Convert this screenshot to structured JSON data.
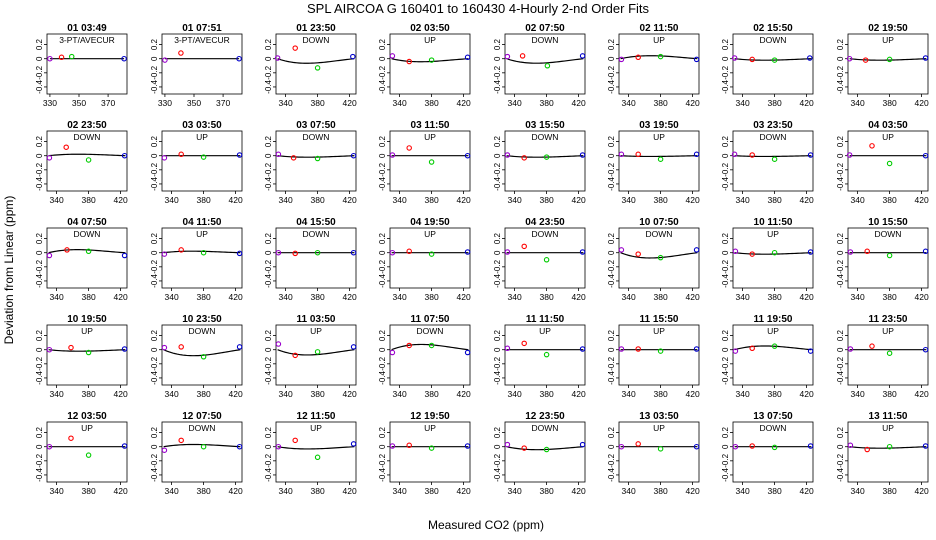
{
  "chart_data": {
    "type": "scatter",
    "title": "SPL   AIRCOA G   160401 to 160430   4-Hourly 2-nd Order Fits",
    "xlabel": "Measured CO2 (ppm)",
    "ylabel": "Deviation from Linear (ppm)",
    "ylim": [
      -0.5,
      0.35
    ],
    "yticks": [
      -0.4,
      -0.2,
      0,
      0.2
    ],
    "ytick_labels": [
      "-0.4",
      "-0.2",
      "0",
      "0.2"
    ],
    "xticks_default": [
      340,
      380,
      420
    ],
    "colors": {
      "a": "#9900cc",
      "b": "#ff0000",
      "c": "#00cc00",
      "d": "#0000cc",
      "fit": "#000000"
    },
    "panels": [
      {
        "time": "01 03:49",
        "label": "3-PT/AVECUR",
        "xlim": [
          328,
          383
        ],
        "xticks": [
          330,
          350,
          370
        ],
        "pts": [
          [
            330,
            0
          ],
          [
            338,
            0.02
          ],
          [
            345,
            0.03
          ],
          [
            381,
            0
          ]
        ],
        "fit": [
          0,
          0
        ]
      },
      {
        "time": "01 07:51",
        "label": "3-PT/AVECUR",
        "xlim": [
          328,
          383
        ],
        "xticks": [
          330,
          350,
          370
        ],
        "pts": [
          [
            330,
            -0.02
          ],
          [
            341,
            0.08
          ],
          [
            381,
            0
          ]
        ],
        "fit": [
          0,
          0
        ]
      },
      {
        "time": "01 23:50",
        "label": "DOWN",
        "xlim": [
          328,
          428
        ],
        "pts": [
          [
            330,
            0.01
          ],
          [
            352,
            0.15
          ],
          [
            380,
            -0.13
          ],
          [
            424,
            0.03
          ]
        ],
        "fit": [
          -0.06,
          3.5
        ]
      },
      {
        "time": "02 03:50",
        "label": "UP",
        "xlim": [
          328,
          428
        ],
        "pts": [
          [
            331,
            0.04
          ],
          [
            352,
            -0.04
          ],
          [
            380,
            -0.02
          ],
          [
            425,
            0.02
          ]
        ],
        "fit": [
          -0.04,
          2.4
        ]
      },
      {
        "time": "02 07:50",
        "label": "DOWN",
        "xlim": [
          328,
          428
        ],
        "pts": [
          [
            331,
            0.03
          ],
          [
            350,
            0.04
          ],
          [
            381,
            -0.1
          ],
          [
            425,
            0.04
          ]
        ],
        "fit": [
          -0.06,
          3.2
        ]
      },
      {
        "time": "02 11:50",
        "label": "UP",
        "xlim": [
          328,
          428
        ],
        "pts": [
          [
            331,
            -0.01
          ],
          [
            352,
            0.02
          ],
          [
            380,
            0.03
          ],
          [
            425,
            -0.01
          ]
        ],
        "fit": [
          0.04,
          -2
        ]
      },
      {
        "time": "02 15:50",
        "label": "DOWN",
        "xlim": [
          328,
          428
        ],
        "pts": [
          [
            330,
            0.01
          ],
          [
            352,
            -0.01
          ],
          [
            380,
            -0.02
          ],
          [
            424,
            0.01
          ]
        ],
        "fit": [
          -0.02,
          1
        ]
      },
      {
        "time": "02 19:50",
        "label": "UP",
        "xlim": [
          328,
          428
        ],
        "pts": [
          [
            330,
            0
          ],
          [
            350,
            -0.02
          ],
          [
            380,
            -0.01
          ],
          [
            425,
            0.01
          ]
        ],
        "fit": [
          -0.02,
          1
        ]
      },
      {
        "time": "02 23:50",
        "label": "DOWN",
        "xlim": [
          328,
          428
        ],
        "pts": [
          [
            331,
            -0.03
          ],
          [
            352,
            0.12
          ],
          [
            380,
            -0.06
          ],
          [
            425,
            0
          ]
        ],
        "fit": [
          0.02,
          -1
        ]
      },
      {
        "time": "03 03:50",
        "label": "UP",
        "xlim": [
          328,
          428
        ],
        "pts": [
          [
            331,
            -0.03
          ],
          [
            352,
            0.02
          ],
          [
            380,
            -0.02
          ],
          [
            425,
            0.01
          ]
        ],
        "fit": [
          0,
          0
        ]
      },
      {
        "time": "03 07:50",
        "label": "DOWN",
        "xlim": [
          328,
          428
        ],
        "pts": [
          [
            331,
            0.02
          ],
          [
            350,
            -0.03
          ],
          [
            380,
            -0.04
          ],
          [
            425,
            0
          ]
        ],
        "fit": [
          -0.02,
          1
        ]
      },
      {
        "time": "03 11:50",
        "label": "UP",
        "xlim": [
          328,
          428
        ],
        "pts": [
          [
            331,
            0.01
          ],
          [
            352,
            0.11
          ],
          [
            380,
            -0.09
          ],
          [
            425,
            0
          ]
        ],
        "fit": [
          0,
          0
        ]
      },
      {
        "time": "03 15:50",
        "label": "DOWN",
        "xlim": [
          328,
          428
        ],
        "pts": [
          [
            331,
            0.01
          ],
          [
            352,
            -0.03
          ],
          [
            380,
            -0.02
          ],
          [
            425,
            0.01
          ]
        ],
        "fit": [
          -0.02,
          1
        ]
      },
      {
        "time": "03 19:50",
        "label": "UP",
        "xlim": [
          328,
          428
        ],
        "pts": [
          [
            331,
            0.02
          ],
          [
            352,
            0.02
          ],
          [
            380,
            -0.05
          ],
          [
            425,
            0.02
          ]
        ],
        "fit": [
          -0.01,
          0.5
        ]
      },
      {
        "time": "03 23:50",
        "label": "DOWN",
        "xlim": [
          328,
          428
        ],
        "pts": [
          [
            330,
            0.02
          ],
          [
            352,
            0.01
          ],
          [
            380,
            -0.05
          ],
          [
            425,
            0.01
          ]
        ],
        "fit": [
          -0.01,
          0.5
        ]
      },
      {
        "time": "04 03:50",
        "label": "UP",
        "xlim": [
          328,
          428
        ],
        "pts": [
          [
            330,
            0.01
          ],
          [
            358,
            0.14
          ],
          [
            380,
            -0.11
          ],
          [
            425,
            0
          ]
        ],
        "fit": [
          0,
          0
        ]
      },
      {
        "time": "04 07:50",
        "label": "DOWN",
        "xlim": [
          328,
          428
        ],
        "pts": [
          [
            331,
            -0.04
          ],
          [
            353,
            0.04
          ],
          [
            380,
            0.02
          ],
          [
            425,
            -0.04
          ]
        ],
        "fit": [
          0.04,
          -2.5
        ]
      },
      {
        "time": "04 11:50",
        "label": "UP",
        "xlim": [
          328,
          428
        ],
        "pts": [
          [
            331,
            -0.02
          ],
          [
            352,
            0.04
          ],
          [
            380,
            0
          ],
          [
            425,
            -0.01
          ]
        ],
        "fit": [
          0.02,
          -1.3
        ]
      },
      {
        "time": "04 15:50",
        "label": "DOWN",
        "xlim": [
          328,
          428
        ],
        "pts": [
          [
            331,
            0
          ],
          [
            352,
            -0.01
          ],
          [
            380,
            0
          ],
          [
            425,
            0
          ]
        ],
        "fit": [
          0,
          0
        ]
      },
      {
        "time": "04 19:50",
        "label": "UP",
        "xlim": [
          328,
          428
        ],
        "pts": [
          [
            331,
            0
          ],
          [
            352,
            0.02
          ],
          [
            380,
            -0.02
          ],
          [
            425,
            0.01
          ]
        ],
        "fit": [
          0,
          0
        ]
      },
      {
        "time": "04 23:50",
        "label": "DOWN",
        "xlim": [
          328,
          428
        ],
        "pts": [
          [
            331,
            0.01
          ],
          [
            352,
            0.09
          ],
          [
            380,
            -0.1
          ],
          [
            425,
            0.01
          ]
        ],
        "fit": [
          0,
          0
        ]
      },
      {
        "time": "10 07:50",
        "label": "DOWN",
        "xlim": [
          328,
          428
        ],
        "pts": [
          [
            331,
            0.04
          ],
          [
            352,
            -0.02
          ],
          [
            380,
            -0.07
          ],
          [
            425,
            0.04
          ]
        ],
        "fit": [
          -0.07,
          3.8
        ]
      },
      {
        "time": "10 11:50",
        "label": "UP",
        "xlim": [
          328,
          428
        ],
        "pts": [
          [
            331,
            0.02
          ],
          [
            352,
            -0.02
          ],
          [
            380,
            0
          ],
          [
            425,
            0.01
          ]
        ],
        "fit": [
          -0.02,
          1
        ]
      },
      {
        "time": "10 15:50",
        "label": "DOWN",
        "xlim": [
          328,
          428
        ],
        "pts": [
          [
            331,
            0.01
          ],
          [
            352,
            0.02
          ],
          [
            380,
            -0.04
          ],
          [
            425,
            0.02
          ]
        ],
        "fit": [
          0,
          0
        ]
      },
      {
        "time": "10 19:50",
        "label": "UP",
        "xlim": [
          328,
          428
        ],
        "pts": [
          [
            331,
            0
          ],
          [
            358,
            0.03
          ],
          [
            380,
            -0.04
          ],
          [
            425,
            0.01
          ]
        ],
        "fit": [
          -0.02,
          1
        ]
      },
      {
        "time": "10 23:50",
        "label": "DOWN",
        "xlim": [
          328,
          428
        ],
        "pts": [
          [
            331,
            0.03
          ],
          [
            352,
            0.04
          ],
          [
            380,
            -0.1
          ],
          [
            425,
            0.04
          ]
        ],
        "fit": [
          -0.08,
          4.2
        ]
      },
      {
        "time": "11 03:50",
        "label": "UP",
        "xlim": [
          328,
          428
        ],
        "pts": [
          [
            331,
            0.08
          ],
          [
            352,
            -0.08
          ],
          [
            380,
            -0.03
          ],
          [
            425,
            0.04
          ]
        ],
        "fit": [
          -0.07,
          3.7
        ]
      },
      {
        "time": "11 07:50",
        "label": "DOWN",
        "xlim": [
          328,
          428
        ],
        "pts": [
          [
            331,
            -0.04
          ],
          [
            352,
            0.06
          ],
          [
            380,
            0.06
          ],
          [
            425,
            -0.04
          ]
        ],
        "fit": [
          0.07,
          -3.8
        ]
      },
      {
        "time": "11 11:50",
        "label": "UP",
        "xlim": [
          328,
          428
        ],
        "pts": [
          [
            331,
            0.02
          ],
          [
            352,
            0.09
          ],
          [
            380,
            -0.07
          ],
          [
            425,
            0.01
          ]
        ],
        "fit": [
          0,
          0
        ]
      },
      {
        "time": "11 15:50",
        "label": "UP",
        "xlim": [
          328,
          428
        ],
        "pts": [
          [
            331,
            0.01
          ],
          [
            352,
            0.01
          ],
          [
            380,
            -0.02
          ],
          [
            425,
            0.01
          ]
        ],
        "fit": [
          0,
          0
        ]
      },
      {
        "time": "11 19:50",
        "label": "UP",
        "xlim": [
          328,
          428
        ],
        "pts": [
          [
            331,
            -0.02
          ],
          [
            352,
            0.02
          ],
          [
            380,
            0.05
          ],
          [
            425,
            -0.02
          ]
        ],
        "fit": [
          0.05,
          -2.6
        ]
      },
      {
        "time": "11 23:50",
        "label": "UP",
        "xlim": [
          328,
          428
        ],
        "pts": [
          [
            331,
            0.01
          ],
          [
            358,
            0.05
          ],
          [
            380,
            -0.05
          ],
          [
            425,
            0
          ]
        ],
        "fit": [
          0,
          0
        ]
      },
      {
        "time": "12 03:50",
        "label": "UP",
        "xlim": [
          328,
          428
        ],
        "pts": [
          [
            331,
            0
          ],
          [
            358,
            0.12
          ],
          [
            380,
            -0.12
          ],
          [
            425,
            0.01
          ]
        ],
        "fit": [
          0,
          0
        ]
      },
      {
        "time": "12 07:50",
        "label": "DOWN",
        "xlim": [
          328,
          428
        ],
        "pts": [
          [
            331,
            -0.05
          ],
          [
            352,
            0.09
          ],
          [
            380,
            0
          ],
          [
            425,
            0
          ]
        ],
        "fit": [
          0.03,
          -1.5
        ]
      },
      {
        "time": "12 11:50",
        "label": "UP",
        "xlim": [
          328,
          428
        ],
        "pts": [
          [
            331,
            0
          ],
          [
            352,
            0.09
          ],
          [
            380,
            -0.15
          ],
          [
            425,
            0.04
          ]
        ],
        "fit": [
          -0.03,
          1.5
        ]
      },
      {
        "time": "12 19:50",
        "label": "UP",
        "xlim": [
          328,
          428
        ],
        "pts": [
          [
            331,
            0.01
          ],
          [
            352,
            0.02
          ],
          [
            380,
            -0.02
          ],
          [
            425,
            0.01
          ]
        ],
        "fit": [
          0,
          0
        ]
      },
      {
        "time": "12 23:50",
        "label": "DOWN",
        "xlim": [
          328,
          428
        ],
        "pts": [
          [
            331,
            0.03
          ],
          [
            352,
            -0.02
          ],
          [
            380,
            -0.04
          ],
          [
            425,
            0.03
          ]
        ],
        "fit": [
          -0.04,
          2
        ]
      },
      {
        "time": "13 03:50",
        "label": "UP",
        "xlim": [
          328,
          428
        ],
        "pts": [
          [
            331,
            0
          ],
          [
            352,
            0.04
          ],
          [
            380,
            -0.03
          ],
          [
            425,
            0
          ]
        ],
        "fit": [
          0,
          0
        ]
      },
      {
        "time": "13 07:50",
        "label": "DOWN",
        "xlim": [
          328,
          428
        ],
        "pts": [
          [
            331,
            0
          ],
          [
            352,
            0.01
          ],
          [
            380,
            -0.01
          ],
          [
            425,
            0.01
          ]
        ],
        "fit": [
          0,
          0
        ]
      },
      {
        "time": "13 11:50",
        "label": "UP",
        "xlim": [
          328,
          428
        ],
        "pts": [
          [
            331,
            0.02
          ],
          [
            352,
            -0.04
          ],
          [
            380,
            0
          ],
          [
            425,
            0.01
          ]
        ],
        "fit": [
          -0.02,
          1
        ]
      }
    ]
  }
}
